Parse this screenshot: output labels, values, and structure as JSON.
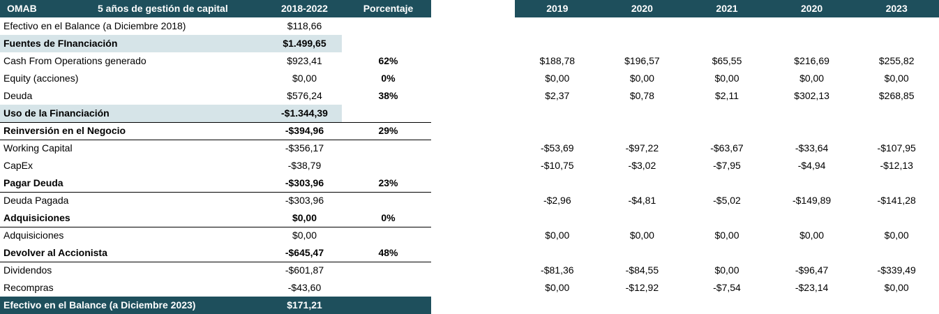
{
  "header": {
    "ticker": "OMAB",
    "title": "5 años de gestión de capital",
    "period": "2018-2022",
    "percent": "Porcentaje",
    "years": [
      "2019",
      "2020",
      "2021",
      "2020",
      "2023"
    ]
  },
  "table": {
    "rows": [
      {
        "label": "Efectivo en el Balance (a Diciembre 2018)",
        "total": "$118,66"
      },
      {
        "label": "Fuentes de FInanciación",
        "total": "$1.499,65"
      },
      {
        "label": "Cash From Operations generado",
        "total": "$923,41",
        "percent": "62%",
        "years": [
          "$188,78",
          "$196,57",
          "$65,55",
          "$216,69",
          "$255,82"
        ]
      },
      {
        "label": "Equity (acciones)",
        "total": "$0,00",
        "percent": "0%",
        "years": [
          "$0,00",
          "$0,00",
          "$0,00",
          "$0,00",
          "$0,00"
        ]
      },
      {
        "label": "Deuda",
        "total": "$576,24",
        "percent": "38%",
        "years": [
          "$2,37",
          "$0,78",
          "$2,11",
          "$302,13",
          "$268,85"
        ]
      },
      {
        "label": "Uso de la Financiación",
        "total": "-$1.344,39"
      },
      {
        "label": "Reinversión en el Negocio",
        "total": "-$394,96",
        "percent": "29%"
      },
      {
        "label": "Working Capital",
        "total": "-$356,17",
        "years": [
          "-$53,69",
          "-$97,22",
          "-$63,67",
          "-$33,64",
          "-$107,95"
        ]
      },
      {
        "label": "CapEx",
        "total": "-$38,79",
        "years": [
          "-$10,75",
          "-$3,02",
          "-$7,95",
          "-$4,94",
          "-$12,13"
        ]
      },
      {
        "label": "Pagar Deuda",
        "total": "-$303,96",
        "percent": "23%"
      },
      {
        "label": "Deuda Pagada",
        "total": "-$303,96",
        "years": [
          "-$2,96",
          "-$4,81",
          "-$5,02",
          "-$149,89",
          "-$141,28"
        ]
      },
      {
        "label": "Adquisiciones",
        "total": "$0,00",
        "percent": "0%"
      },
      {
        "label": "Adquisiciones",
        "total": "$0,00",
        "years": [
          "$0,00",
          "$0,00",
          "$0,00",
          "$0,00",
          "$0,00"
        ]
      },
      {
        "label": "Devolver al Accionista",
        "total": "-$645,47",
        "percent": "48%"
      },
      {
        "label": "Dividendos",
        "total": "-$601,87",
        "years": [
          "-$81,36",
          "-$84,55",
          "$0,00",
          "-$96,47",
          "-$339,49"
        ]
      },
      {
        "label": "Recompras",
        "total": "-$43,60",
        "years": [
          "$0,00",
          "-$12,92",
          "-$7,54",
          "-$23,14",
          "$0,00"
        ]
      },
      {
        "label": "Efectivo en el Balance (a Diciembre 2023)",
        "total": "$171,21"
      }
    ]
  }
}
